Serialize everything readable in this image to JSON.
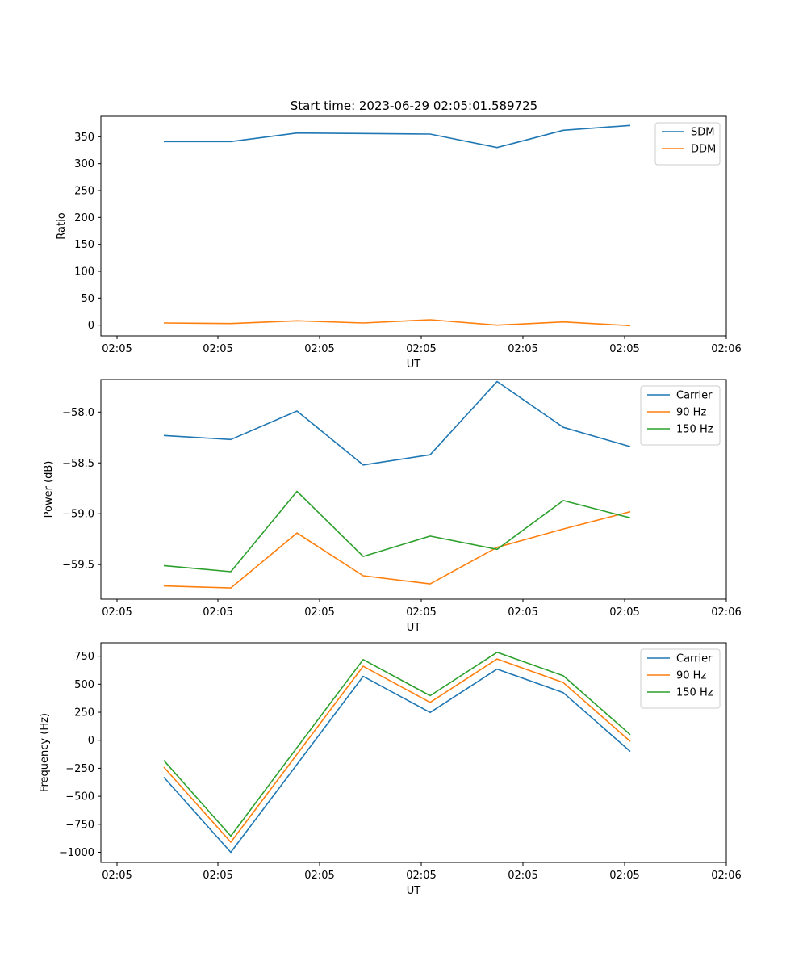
{
  "figure": {
    "title": "Start time: 2023-06-29 02:05:01.589725"
  },
  "chart_data": [
    {
      "type": "line",
      "xlabel": "UT",
      "ylabel": "Ratio",
      "x_tick_labels": [
        "02:05",
        "02:05",
        "02:05",
        "02:05",
        "02:05",
        "02:05",
        "02:06"
      ],
      "y_ticks": [
        0,
        50,
        100,
        150,
        200,
        250,
        300,
        350
      ],
      "ylim": [
        -20,
        388
      ],
      "legend_position": "top-right",
      "series": [
        {
          "name": "SDM",
          "color": "#1f77b4",
          "values": [
            341,
            341,
            357,
            356,
            355,
            330,
            362,
            371
          ]
        },
        {
          "name": "DDM",
          "color": "#ff7f0e",
          "values": [
            4,
            3,
            8,
            4,
            10,
            0,
            6,
            -1
          ]
        }
      ]
    },
    {
      "type": "line",
      "xlabel": "UT",
      "ylabel": "Power (dB)",
      "x_tick_labels": [
        "02:05",
        "02:05",
        "02:05",
        "02:05",
        "02:05",
        "02:05",
        "02:06"
      ],
      "y_ticks": [
        -59.5,
        -59.0,
        -58.5,
        -58.0
      ],
      "y_tick_labels": [
        "−59.5",
        "−59.0",
        "−58.5",
        "−58.0"
      ],
      "ylim": [
        -59.84,
        -57.68
      ],
      "legend_position": "top-right",
      "series": [
        {
          "name": "Carrier",
          "color": "#1f77b4",
          "values": [
            -58.23,
            -58.27,
            -57.99,
            -58.52,
            -58.42,
            -57.7,
            -58.15,
            -58.34
          ]
        },
        {
          "name": "90 Hz",
          "color": "#ff7f0e",
          "values": [
            -59.71,
            -59.73,
            -59.19,
            -59.61,
            -59.69,
            -59.33,
            -59.15,
            -58.98
          ]
        },
        {
          "name": "150 Hz",
          "color": "#2ca02c",
          "values": [
            -59.51,
            -59.57,
            -58.78,
            -59.42,
            -59.22,
            -59.35,
            -58.87,
            -59.04
          ]
        }
      ]
    },
    {
      "type": "line",
      "xlabel": "UT",
      "ylabel": "Frequency (Hz)",
      "x_tick_labels": [
        "02:05",
        "02:05",
        "02:05",
        "02:05",
        "02:05",
        "02:05",
        "02:06"
      ],
      "y_ticks": [
        -1000,
        -750,
        -500,
        -250,
        0,
        250,
        500,
        750
      ],
      "y_tick_labels": [
        "−1000",
        "−750",
        "−500",
        "−250",
        "0",
        "250",
        "500",
        "750"
      ],
      "ylim": [
        -1090,
        870
      ],
      "legend_position": "top-right",
      "series": [
        {
          "name": "Carrier",
          "color": "#1f77b4",
          "values": [
            -330,
            -1000,
            -215,
            570,
            248,
            635,
            425,
            -100
          ]
        },
        {
          "name": "90 Hz",
          "color": "#ff7f0e",
          "values": [
            -240,
            -910,
            -125,
            660,
            338,
            725,
            515,
            -10
          ]
        },
        {
          "name": "150 Hz",
          "color": "#2ca02c",
          "values": [
            -180,
            -855,
            -65,
            720,
            398,
            785,
            575,
            50
          ]
        }
      ]
    }
  ]
}
